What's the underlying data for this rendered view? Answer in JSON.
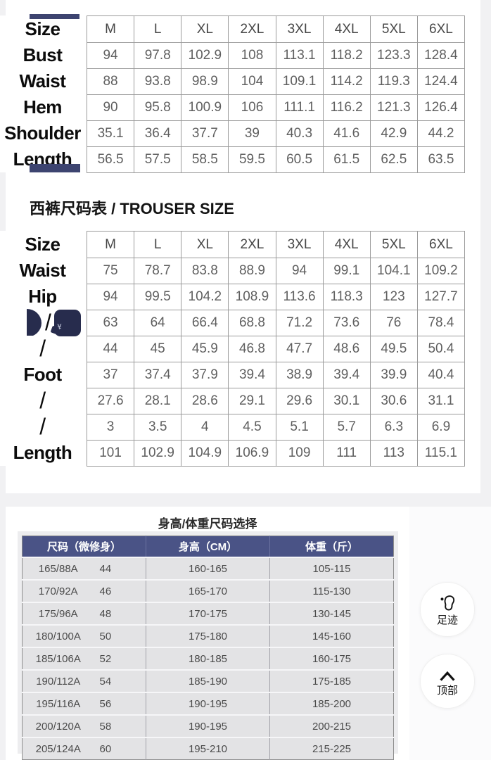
{
  "colors": {
    "page_bg": "#f1f1f3",
    "navy_bar": "#3d4470",
    "navy_blob": "#272c4d",
    "table_border": "#9b9b9b",
    "cell_text": "#5f5f5f",
    "hw_header_bg": "#4a5386",
    "hw_row_bg": "#e3e3e5"
  },
  "jacket_table": {
    "size_label": "Size",
    "sizes": [
      "M",
      "L",
      "XL",
      "2XL",
      "3XL",
      "4XL",
      "5XL",
      "6XL"
    ],
    "rows": [
      {
        "label": "Bust",
        "values": [
          "94",
          "97.8",
          "102.9",
          "108",
          "113.1",
          "118.2",
          "123.3",
          "128.4"
        ]
      },
      {
        "label": "Waist",
        "values": [
          "88",
          "93.8",
          "98.9",
          "104",
          "109.1",
          "114.2",
          "119.3",
          "124.4"
        ]
      },
      {
        "label": "Hem",
        "values": [
          "90",
          "95.8",
          "100.9",
          "106",
          "111.1",
          "116.2",
          "121.3",
          "126.4"
        ]
      },
      {
        "label": "Shoulder",
        "values": [
          "35.1",
          "36.4",
          "37.7",
          "39",
          "40.3",
          "41.6",
          "42.9",
          "44.2"
        ]
      },
      {
        "label": "Length",
        "values": [
          "56.5",
          "57.5",
          "58.5",
          "59.5",
          "60.5",
          "61.5",
          "62.5",
          "63.5"
        ]
      }
    ]
  },
  "trouser_table": {
    "heading": "西裤尺码表 / TROUSER SIZE",
    "size_label": "Size",
    "sizes": [
      "M",
      "L",
      "XL",
      "2XL",
      "3XL",
      "4XL",
      "5XL",
      "6XL"
    ],
    "rows": [
      {
        "label": "Waist",
        "values": [
          "75",
          "78.7",
          "83.8",
          "88.9",
          "94",
          "99.1",
          "104.1",
          "109.2"
        ]
      },
      {
        "label": "Hip",
        "values": [
          "94",
          "99.5",
          "104.2",
          "108.9",
          "113.6",
          "118.3",
          "123",
          "127.7"
        ]
      },
      {
        "label": "/",
        "obscured": true,
        "glyph": "¥",
        "values": [
          "63",
          "64",
          "66.4",
          "68.8",
          "71.2",
          "73.6",
          "76",
          "78.4"
        ]
      },
      {
        "label": "/",
        "values": [
          "44",
          "45",
          "45.9",
          "46.8",
          "47.7",
          "48.6",
          "49.5",
          "50.4"
        ]
      },
      {
        "label": "Foot",
        "values": [
          "37",
          "37.4",
          "37.9",
          "39.4",
          "38.9",
          "39.4",
          "39.9",
          "40.4"
        ]
      },
      {
        "label": "/",
        "values": [
          "27.6",
          "28.1",
          "28.6",
          "29.1",
          "29.6",
          "30.1",
          "30.6",
          "31.1"
        ]
      },
      {
        "label": "/",
        "values": [
          "3",
          "3.5",
          "4",
          "4.5",
          "5.1",
          "5.7",
          "6.3",
          "6.9"
        ]
      },
      {
        "label": "Length",
        "values": [
          "101",
          "102.9",
          "104.9",
          "106.9",
          "109",
          "111",
          "113",
          "115.1"
        ]
      }
    ]
  },
  "height_weight": {
    "heading": "身高/体重尺码选择",
    "columns": [
      "尺码（微修身）",
      "身高（CM）",
      "体重（斤）"
    ],
    "rows": [
      {
        "code": "165/88A",
        "num": "44",
        "height": "160-165",
        "weight": "105-115"
      },
      {
        "code": "170/92A",
        "num": "46",
        "height": "165-170",
        "weight": "115-130"
      },
      {
        "code": "175/96A",
        "num": "48",
        "height": "170-175",
        "weight": "130-145"
      },
      {
        "code": "180/100A",
        "num": "50",
        "height": "175-180",
        "weight": "145-160"
      },
      {
        "code": "185/106A",
        "num": "52",
        "height": "180-185",
        "weight": "160-175"
      },
      {
        "code": "190/112A",
        "num": "54",
        "height": "185-190",
        "weight": "175-185"
      },
      {
        "code": "195/116A",
        "num": "56",
        "height": "190-195",
        "weight": "185-200"
      },
      {
        "code": "200/120A",
        "num": "58",
        "height": "190-195",
        "weight": "200-215"
      },
      {
        "code": "205/124A",
        "num": "60",
        "height": "195-210",
        "weight": "215-225"
      }
    ]
  },
  "floating_buttons": {
    "footprints_label": "足迹",
    "top_label": "顶部"
  }
}
